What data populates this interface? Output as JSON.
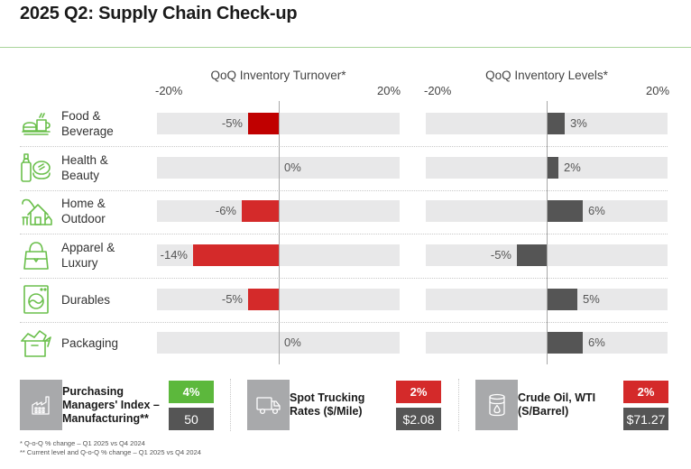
{
  "title": "2025 Q2: Supply Chain Check-up",
  "colors": {
    "accent_green": "#6abf4b",
    "bar_red_primary": "#c00000",
    "bar_red": "#d42a2a",
    "bar_gray": "#555555",
    "track": "#e8e8e9",
    "kpi_up": "#5cb83c",
    "kpi_down": "#d42a2a",
    "kpi_value": "#555555",
    "kpi_icon_bg": "#a8a9ab"
  },
  "categories": [
    {
      "label": "Food & Beverage",
      "icon": "food-beverage-icon"
    },
    {
      "label": "Health & Beauty",
      "icon": "health-beauty-icon"
    },
    {
      "label": "Home & Outdoor",
      "icon": "home-outdoor-icon"
    },
    {
      "label": "Apparel & Luxury",
      "icon": "apparel-luxury-icon"
    },
    {
      "label": "Durables",
      "icon": "durables-icon"
    },
    {
      "label": "Packaging",
      "icon": "packaging-icon"
    }
  ],
  "chart_data": [
    {
      "type": "bar",
      "orientation": "horizontal",
      "title": "QoQ Inventory Turnover*",
      "xlim": [
        -20,
        20
      ],
      "tick_labels": [
        "-20%",
        "20%"
      ],
      "categories": [
        "Food & Beverage",
        "Health & Beauty",
        "Home & Outdoor",
        "Apparel & Luxury",
        "Durables",
        "Packaging"
      ],
      "values": [
        -5,
        0,
        -6,
        -14,
        -5,
        0
      ],
      "data_labels": [
        "-5%",
        "0%",
        "-6%",
        "-14%",
        "-5%",
        "0%"
      ]
    },
    {
      "type": "bar",
      "orientation": "horizontal",
      "title": "QoQ Inventory Levels*",
      "xlim": [
        -20,
        20
      ],
      "tick_labels": [
        "-20%",
        "20%"
      ],
      "categories": [
        "Food & Beverage",
        "Health & Beauty",
        "Home & Outdoor",
        "Apparel & Luxury",
        "Durables",
        "Packaging"
      ],
      "values": [
        3,
        2,
        6,
        -5,
        5,
        6
      ],
      "data_labels": [
        "3%",
        "2%",
        "6%",
        "-5%",
        "5%",
        "6%"
      ]
    }
  ],
  "kpis": [
    {
      "label_lines": [
        "Purchasing",
        "Managers' Index –",
        "Manufacturing**"
      ],
      "change": "4%",
      "direction": "up",
      "value": "50",
      "icon": "factory-icon"
    },
    {
      "label_lines": [
        "Spot Trucking",
        "Rates ($/Mile)"
      ],
      "change": "2%",
      "direction": "down",
      "value": "$2.08",
      "icon": "truck-icon"
    },
    {
      "label_lines": [
        "Crude Oil, WTI",
        "(S/Barrel)"
      ],
      "change": "2%",
      "direction": "down",
      "value": "$71.27",
      "icon": "oil-barrel-icon"
    }
  ],
  "footnotes": [
    "* Q-o-Q % change – Q1 2025 vs Q4 2024",
    "** Current level and Q-o-Q % change – Q1 2025 vs Q4 2024"
  ]
}
